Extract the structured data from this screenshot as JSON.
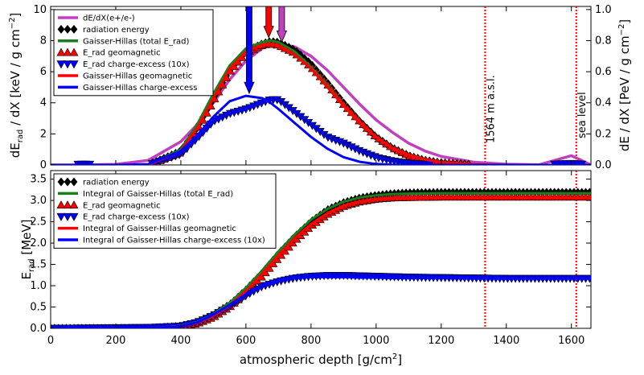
{
  "chart_data": [
    {
      "type": "line",
      "panel": "top",
      "ylabel": "dE_rad / dX [keV / g cm^-2]",
      "y2label": "dE / dX [PeV / g cm^-2]",
      "xlim": [
        0,
        1660
      ],
      "ylim": [
        0,
        10.2
      ],
      "y2lim": [
        0,
        1.02
      ],
      "y_ticks": [
        0,
        2,
        4,
        6,
        8,
        10
      ],
      "y2_ticks": [
        "0.0",
        "0.2",
        "0.4",
        "0.6",
        "0.8",
        "1.0"
      ],
      "grid": false,
      "legend_placement": "top-left",
      "x": [
        0,
        100,
        200,
        300,
        400,
        450,
        500,
        550,
        600,
        650,
        675,
        700,
        750,
        800,
        850,
        900,
        950,
        1000,
        1050,
        1100,
        1150,
        1200,
        1300,
        1400,
        1500,
        1600,
        1660
      ],
      "series": [
        {
          "name": "dE/dX(e+/e-)",
          "color": "#c040c0",
          "style": "line",
          "axis": "right",
          "values": [
            0,
            0,
            0.004,
            0.03,
            0.15,
            0.26,
            0.4,
            0.55,
            0.67,
            0.75,
            0.77,
            0.78,
            0.76,
            0.7,
            0.61,
            0.5,
            0.39,
            0.29,
            0.21,
            0.14,
            0.09,
            0.055,
            0.018,
            0.005,
            0.001,
            0.06,
            0
          ]
        },
        {
          "name": "radiation energy",
          "color": "#000000",
          "style": "marker-diamond",
          "values": [
            0,
            0,
            0,
            0,
            0.9,
            2.4,
            4.3,
            6.1,
            7.3,
            7.8,
            7.95,
            7.9,
            7.4,
            6.5,
            5.3,
            4.0,
            2.8,
            1.8,
            1.1,
            0.6,
            0.3,
            0.15,
            0.03,
            0,
            0,
            0,
            0
          ]
        },
        {
          "name": "Gaisser-Hillas (total E_rad)",
          "color": "#1a7f1a",
          "style": "line",
          "values": [
            0,
            0,
            0,
            0,
            1.0,
            2.6,
            4.6,
            6.4,
            7.5,
            7.9,
            8.0,
            7.9,
            7.3,
            6.3,
            5.1,
            3.8,
            2.7,
            1.8,
            1.1,
            0.65,
            0.35,
            0.18,
            0.04,
            0,
            0,
            0,
            0
          ]
        },
        {
          "name": "E_rad geomagnetic",
          "color": "#ff0000",
          "style": "marker-triangle-up",
          "values": [
            0,
            0,
            0,
            0,
            0.8,
            2.2,
            4.1,
            6.0,
            7.2,
            7.7,
            7.8,
            7.7,
            7.2,
            6.3,
            5.2,
            3.9,
            2.8,
            1.8,
            1.1,
            0.6,
            0.3,
            0.15,
            0.03,
            0,
            0,
            0,
            0
          ]
        },
        {
          "name": "E_rad charge-excess (10x)",
          "color": "#0000ff",
          "style": "marker-triangle-down",
          "values": [
            0,
            0.05,
            0,
            0,
            0.7,
            1.7,
            2.8,
            3.3,
            3.6,
            4.0,
            4.2,
            4.2,
            3.4,
            2.6,
            1.8,
            1.4,
            0.9,
            0.5,
            0.25,
            0.12,
            0.05,
            0.02,
            0,
            0,
            0,
            0.1,
            0
          ]
        },
        {
          "name": "Gaisser-Hillas geomagnetic",
          "color": "#ff0000",
          "style": "line",
          "values": [
            0,
            0,
            0,
            0,
            0.9,
            2.4,
            4.3,
            6.2,
            7.3,
            7.75,
            7.8,
            7.7,
            7.1,
            6.2,
            5.0,
            3.8,
            2.7,
            1.8,
            1.1,
            0.65,
            0.35,
            0.18,
            0.04,
            0,
            0,
            0,
            0
          ]
        },
        {
          "name": "Gaisser-Hillas charge-excess",
          "color": "#0000ff",
          "style": "line",
          "values": [
            0,
            0,
            0,
            0.05,
            0.9,
            1.9,
            3.1,
            4.1,
            4.45,
            4.3,
            4.0,
            3.6,
            2.7,
            1.8,
            1.05,
            0.5,
            0.2,
            0.06,
            0.01,
            0,
            0,
            0,
            0,
            0,
            0,
            0,
            0
          ]
        }
      ],
      "arrows": [
        {
          "x": 610,
          "color": "#0000ff",
          "y_from": 10.2,
          "y_to": 4.6
        },
        {
          "x": 670,
          "color": "#ff0000",
          "y_from": 10.2,
          "y_to": 8.2
        },
        {
          "x": 710,
          "color": "#c040c0",
          "y_from": 10.2,
          "y_to": 7.9
        }
      ],
      "vlines": [
        {
          "x": 1335,
          "color": "#ff0000",
          "label": "1564 m a.s.l."
        },
        {
          "x": 1615,
          "color": "#ff0000",
          "label": "sea level"
        }
      ]
    },
    {
      "type": "line",
      "panel": "bottom",
      "xlabel": "atmospheric depth [g/cm^2]",
      "ylabel": "E_rad [MeV]",
      "xlim": [
        0,
        1660
      ],
      "ylim": [
        0,
        3.7
      ],
      "x_ticks": [
        0,
        200,
        400,
        600,
        800,
        1000,
        1200,
        1400,
        1600
      ],
      "y_ticks": [
        "0.0",
        "0.5",
        "1.0",
        "1.5",
        "2.0",
        "2.5",
        "3.0",
        "3.5"
      ],
      "grid": false,
      "legend_placement": "top-left",
      "x": [
        0,
        300,
        400,
        450,
        500,
        550,
        600,
        650,
        700,
        750,
        800,
        850,
        900,
        950,
        1000,
        1050,
        1100,
        1200,
        1300,
        1400,
        1500,
        1600,
        1660
      ],
      "series": [
        {
          "name": "radiation energy",
          "color": "#000000",
          "style": "marker-diamond",
          "values": [
            0,
            0,
            0.05,
            0.13,
            0.3,
            0.55,
            0.9,
            1.3,
            1.75,
            2.15,
            2.5,
            2.78,
            2.95,
            3.06,
            3.12,
            3.16,
            3.18,
            3.19,
            3.19,
            3.19,
            3.19,
            3.19,
            3.19
          ]
        },
        {
          "name": "Integral of Gaisser-Hillas (total E_rad)",
          "color": "#1a7f1a",
          "style": "line",
          "values": [
            0,
            0,
            0.06,
            0.15,
            0.33,
            0.6,
            0.95,
            1.35,
            1.8,
            2.2,
            2.55,
            2.8,
            2.97,
            3.07,
            3.12,
            3.15,
            3.16,
            3.17,
            3.17,
            3.17,
            3.17,
            3.17,
            3.17
          ]
        },
        {
          "name": "E_rad geomagnetic",
          "color": "#ff0000",
          "style": "marker-triangle-up",
          "values": [
            0,
            0,
            0.04,
            0.11,
            0.26,
            0.5,
            0.83,
            1.22,
            1.65,
            2.05,
            2.4,
            2.67,
            2.86,
            2.97,
            3.03,
            3.06,
            3.07,
            3.08,
            3.08,
            3.08,
            3.08,
            3.08,
            3.08
          ]
        },
        {
          "name": "E_rad charge-excess (10x)",
          "color": "#0000ff",
          "style": "marker-triangle-down",
          "values": [
            0,
            0.02,
            0.05,
            0.14,
            0.3,
            0.52,
            0.77,
            0.98,
            1.1,
            1.18,
            1.22,
            1.24,
            1.24,
            1.23,
            1.22,
            1.21,
            1.2,
            1.19,
            1.18,
            1.17,
            1.17,
            1.17,
            1.17
          ]
        },
        {
          "name": "Integral of Gaisser-Hillas geomagnetic",
          "color": "#ff0000",
          "style": "line",
          "values": [
            0,
            0,
            0.05,
            0.13,
            0.29,
            0.54,
            0.88,
            1.28,
            1.72,
            2.12,
            2.45,
            2.7,
            2.88,
            2.98,
            3.03,
            3.05,
            3.06,
            3.06,
            3.06,
            3.06,
            3.06,
            3.06,
            3.06
          ]
        },
        {
          "name": "Integral of Gaisser-Hillas charge-excess (10x)",
          "color": "#0000ff",
          "style": "line",
          "values": [
            0,
            0,
            0.05,
            0.14,
            0.32,
            0.55,
            0.8,
            1.0,
            1.12,
            1.18,
            1.2,
            1.2,
            1.2,
            1.19,
            1.19,
            1.18,
            1.18,
            1.18,
            1.17,
            1.17,
            1.17,
            1.17,
            1.17
          ]
        }
      ],
      "vlines": [
        {
          "x": 1335,
          "color": "#ff0000"
        },
        {
          "x": 1615,
          "color": "#ff0000"
        }
      ]
    }
  ]
}
